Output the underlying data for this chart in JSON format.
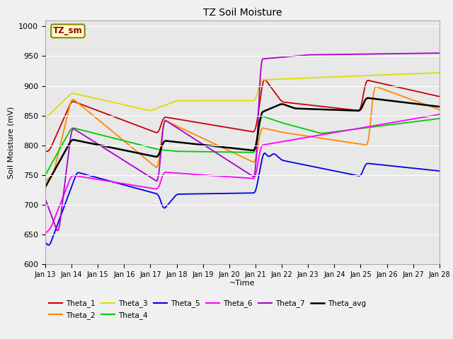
{
  "title": "TZ Soil Moisture",
  "ylabel": "Soil Moisture (mV)",
  "xlabel": "~Time",
  "xlim_days": 15,
  "ylim": [
    600,
    1010
  ],
  "yticks": [
    600,
    650,
    700,
    750,
    800,
    850,
    900,
    950,
    1000
  ],
  "xtick_labels": [
    "Jan 13",
    "Jan 14",
    "Jan 15",
    "Jan 16",
    "Jan 17",
    "Jan 18",
    "Jan 19",
    "Jan 20",
    "Jan 21",
    "Jan 22",
    "Jan 23",
    "Jan 24",
    "Jan 25",
    "Jan 26",
    "Jan 27",
    "Jan 28"
  ],
  "legend_label": "TZ_sm",
  "series_colors": {
    "Theta_1": "#cc0000",
    "Theta_2": "#ff8800",
    "Theta_3": "#dddd00",
    "Theta_4": "#00cc00",
    "Theta_5": "#0000dd",
    "Theta_6": "#ff00ff",
    "Theta_7": "#aa00cc",
    "Theta_avg": "#000000"
  },
  "fig_facecolor": "#f0f0f0",
  "ax_facecolor": "#e8e8e8",
  "grid_color": "#ffffff"
}
